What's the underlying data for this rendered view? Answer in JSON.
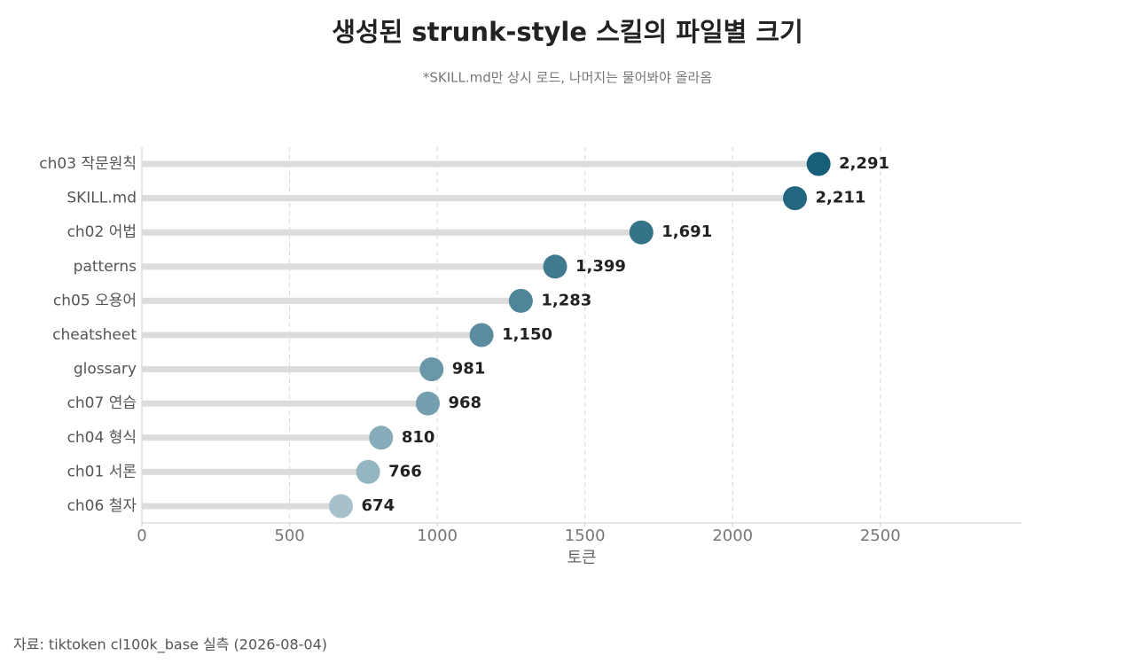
{
  "chart_data": {
    "type": "lollipop",
    "title": "생성된 strunk-style 스킬의 파일별 크기",
    "subtitle": "*SKILL.md만 상시 로드, 나머지는 물어봐야 올라옴",
    "x_label": "토큰",
    "source": "자료: tiktoken cl100k_base 실측 (2026-08-04)",
    "categories": [
      "ch03 작문원칙",
      "SKILL.md",
      "ch02 어법",
      "patterns",
      "ch05 오용어",
      "cheatsheet",
      "glossary",
      "ch07 연습",
      "ch04 형식",
      "ch01 서론",
      "ch06 철자"
    ],
    "values": [
      2291,
      2211,
      1691,
      1399,
      1283,
      1150,
      981,
      968,
      810,
      766,
      674
    ],
    "value_labels": [
      "2,291",
      "2,211",
      "1,691",
      "1,399",
      "1,283",
      "1,150",
      "981",
      "968",
      "810",
      "766",
      "674"
    ],
    "colors": [
      "#175e78",
      "#23667f",
      "#347388",
      "#3f7a8e",
      "#4f8599",
      "#5a8d9f",
      "#6a98a9",
      "#739faf",
      "#87acba",
      "#94b6c2",
      "#a6c1cb"
    ],
    "stem_color": "#dcdcdc",
    "xlim": [
      0,
      2978
    ],
    "xticks": [
      0,
      500,
      1000,
      1500,
      2000,
      2500
    ],
    "grid": true
  }
}
